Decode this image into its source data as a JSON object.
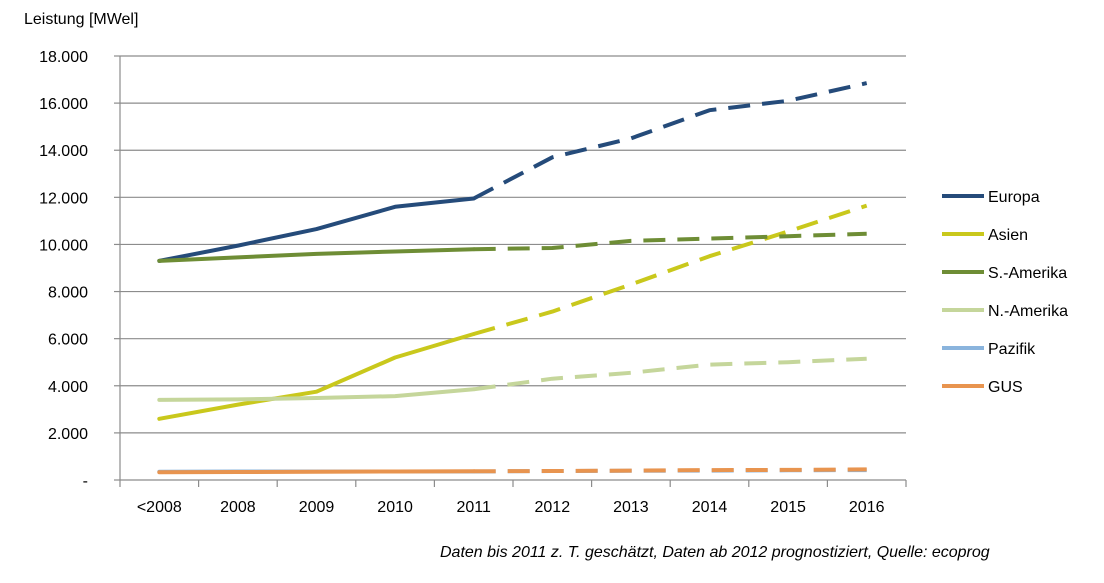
{
  "chart_data": {
    "type": "line",
    "ylabel": "Leistung [MWel]",
    "xlabel": "",
    "categories": [
      "<2008",
      "2008",
      "2009",
      "2010",
      "2011",
      "2012",
      "2013",
      "2014",
      "2015",
      "2016"
    ],
    "ylim": [
      0,
      18000
    ],
    "yticks": [
      0,
      2000,
      4000,
      6000,
      8000,
      10000,
      12000,
      14000,
      16000,
      18000
    ],
    "ytick_labels": [
      "-",
      "2.000",
      "4.000",
      "6.000",
      "8.000",
      "10.000",
      "12.000",
      "14.000",
      "16.000",
      "18.000"
    ],
    "grid": "horizontal",
    "legend_position": "right",
    "solid_until": "2011",
    "dashed_from": "2011",
    "series": [
      {
        "name": "Europa",
        "color": "#254b7a",
        "values": [
          9300,
          9950,
          10650,
          11600,
          11950,
          13700,
          14500,
          15700,
          16100,
          16850
        ]
      },
      {
        "name": "Asien",
        "color": "#c9c81c",
        "values": [
          2600,
          3200,
          3750,
          5200,
          6200,
          7150,
          8300,
          9500,
          10550,
          11650
        ]
      },
      {
        "name": "S.-Amerika",
        "color": "#6e8d35",
        "values": [
          9300,
          9450,
          9600,
          9700,
          9800,
          9850,
          10150,
          10250,
          10350,
          10450
        ]
      },
      {
        "name": "N.-Amerika",
        "color": "#c5d69b",
        "values": [
          3400,
          3420,
          3480,
          3560,
          3850,
          4300,
          4550,
          4900,
          5000,
          5150
        ]
      },
      {
        "name": "Pazifik",
        "color": "#8ab4dd",
        "values": [
          350,
          360,
          360,
          360,
          360,
          380,
          390,
          400,
          410,
          420
        ]
      },
      {
        "name": "GUS",
        "color": "#e8944f",
        "values": [
          330,
          340,
          350,
          360,
          370,
          380,
          400,
          420,
          430,
          450
        ]
      }
    ]
  },
  "source_note": "Daten bis 2011 z. T. geschätzt, Daten ab 2012 prognostiziert, Quelle: ecoprog"
}
